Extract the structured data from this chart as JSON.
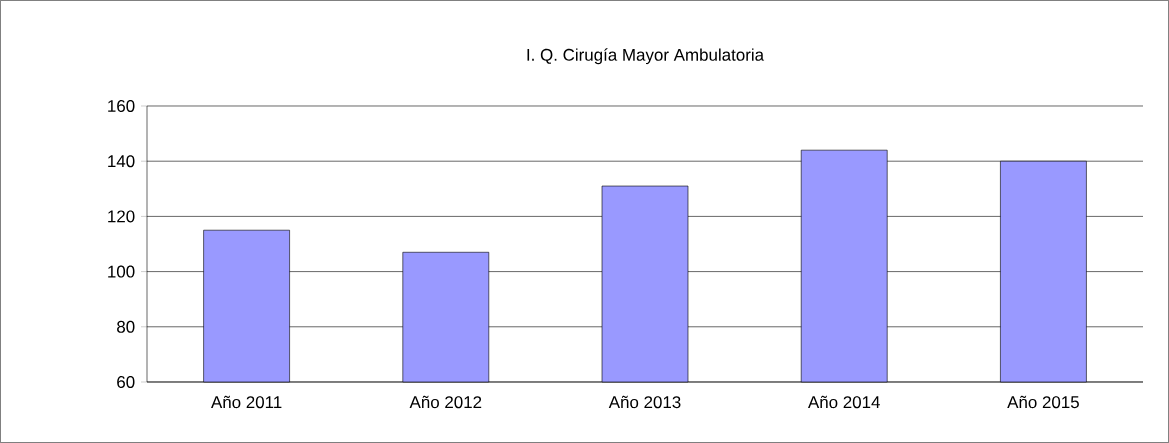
{
  "chart_data": {
    "type": "bar",
    "title": "I. Q. Cirugía Mayor Ambulatoria",
    "categories": [
      "Año 2011",
      "Año 2012",
      "Año 2013",
      "Año 2014",
      "Año 2015"
    ],
    "values": [
      115,
      107,
      131,
      144,
      140
    ],
    "color": "#9999ff",
    "ylim": [
      60,
      160
    ],
    "yticks": [
      60,
      80,
      100,
      120,
      140,
      160
    ],
    "grid": "y"
  }
}
